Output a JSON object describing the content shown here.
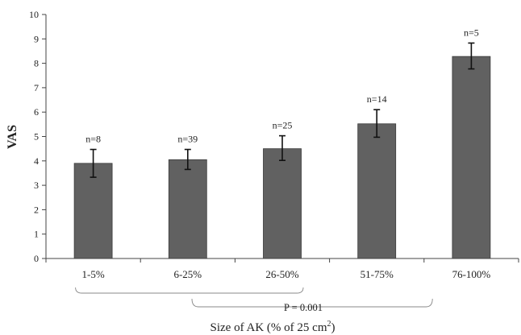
{
  "chart_data": {
    "type": "bar",
    "title": "",
    "ylabel": "VAS",
    "xlabel": "Size of AK (% of 25 cm",
    "xlabel_sup": "2",
    "xlabel_suffix": ")",
    "categories": [
      "1-5%",
      "6-25%",
      "26-50%",
      "51-75%",
      "76-100%"
    ],
    "values": [
      3.9,
      4.05,
      4.5,
      5.52,
      8.28
    ],
    "error_low": [
      3.33,
      3.65,
      4.02,
      4.97,
      7.77
    ],
    "error_high": [
      4.47,
      4.47,
      5.03,
      6.1,
      8.83
    ],
    "sample_labels": [
      "n=8",
      "n=39",
      "n=25",
      "n=14",
      "n=5"
    ],
    "ylim": [
      0,
      10
    ],
    "yticks": [
      "0",
      "1",
      "2",
      "3",
      "4",
      "5",
      "6",
      "7",
      "8",
      "9",
      "10"
    ],
    "annotation": "P = 0.001",
    "bar_color": "#616161",
    "grid": false,
    "legend": "none"
  }
}
